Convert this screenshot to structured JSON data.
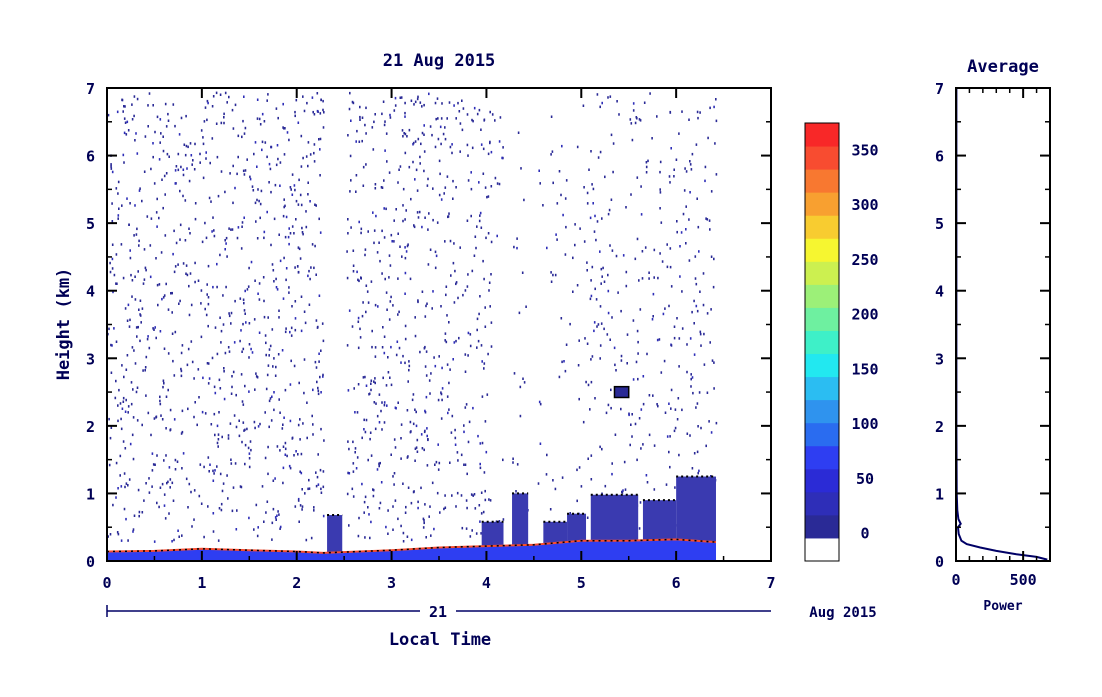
{
  "chart_data": [
    {
      "type": "heatmap",
      "title": "21 Aug 2015",
      "ylabel": "Height (km)",
      "xlabel": "Local Time",
      "xlim": [
        0,
        7
      ],
      "ylim": [
        0,
        7
      ],
      "x_ticks": [
        "0",
        "1",
        "2",
        "3",
        "4",
        "5",
        "6",
        "7"
      ],
      "y_ticks": [
        "0",
        "1",
        "2",
        "3",
        "4",
        "5",
        "6",
        "7"
      ],
      "date_axis": {
        "day": "21",
        "month_year": "Aug 2015"
      },
      "colorbar": {
        "ticks": [
          "0",
          "50",
          "100",
          "150",
          "200",
          "250",
          "300",
          "350"
        ],
        "min": -25,
        "max": 375,
        "colors": [
          "#ffffff",
          "#2a2a96",
          "#2e2eb8",
          "#2b2bd6",
          "#2e3ef2",
          "#2a6cf0",
          "#2f93ee",
          "#2bbdf2",
          "#22e8f0",
          "#3ef0c8",
          "#6ef0a0",
          "#9cf078",
          "#ccf050",
          "#f6f630",
          "#f8cc30",
          "#f8a030",
          "#f87830",
          "#f84c30",
          "#f82828"
        ]
      },
      "gaps_hours": [
        [
          2.28,
          2.52
        ],
        [
          4.18,
          4.27
        ],
        [
          4.44,
          4.53
        ],
        [
          6.42,
          7.0
        ]
      ],
      "surface_layer": [
        {
          "x": 0.0,
          "top": 0.14
        },
        {
          "x": 0.5,
          "top": 0.15
        },
        {
          "x": 1.0,
          "top": 0.18
        },
        {
          "x": 1.5,
          "top": 0.16
        },
        {
          "x": 2.0,
          "top": 0.14
        },
        {
          "x": 2.28,
          "top": 0.12
        },
        {
          "x": 3.0,
          "top": 0.16
        },
        {
          "x": 3.5,
          "top": 0.2
        },
        {
          "x": 4.0,
          "top": 0.22
        },
        {
          "x": 4.5,
          "top": 0.24
        },
        {
          "x": 5.0,
          "top": 0.3
        },
        {
          "x": 5.5,
          "top": 0.3
        },
        {
          "x": 6.0,
          "top": 0.32
        },
        {
          "x": 6.42,
          "top": 0.28
        }
      ],
      "elevated_layers": [
        {
          "x0": 2.32,
          "x1": 2.48,
          "top": 0.68,
          "bottom": 0.0
        },
        {
          "x0": 3.95,
          "x1": 4.18,
          "top": 0.58,
          "bottom": 0.0
        },
        {
          "x0": 4.27,
          "x1": 4.44,
          "top": 1.0,
          "bottom": 0.0
        },
        {
          "x0": 4.6,
          "x1": 4.85,
          "top": 0.58,
          "bottom": 0.0
        },
        {
          "x0": 4.85,
          "x1": 5.05,
          "top": 0.7,
          "bottom": 0.0
        },
        {
          "x0": 5.1,
          "x1": 5.6,
          "top": 0.98,
          "bottom": 0.0
        },
        {
          "x0": 5.65,
          "x1": 6.0,
          "top": 0.9,
          "bottom": 0.0
        },
        {
          "x0": 6.0,
          "x1": 6.42,
          "top": 1.25,
          "bottom": 0.0
        }
      ],
      "cloud_feature": {
        "x0": 5.35,
        "x1": 5.5,
        "y0": 2.42,
        "y1": 2.58
      }
    },
    {
      "type": "line",
      "title": "Average",
      "xlabel": "Power",
      "xlim": [
        0,
        700
      ],
      "ylim": [
        0,
        7
      ],
      "x_ticks": [
        "0",
        "500"
      ],
      "y_ticks": [
        "0",
        "1",
        "2",
        "3",
        "4",
        "5",
        "6",
        "7"
      ],
      "series": [
        {
          "x": [
            680,
            600,
            450,
            300,
            180,
            80,
            40,
            20,
            15,
            35,
            18,
            10,
            5,
            3,
            3,
            3
          ],
          "y": [
            0.02,
            0.06,
            0.1,
            0.15,
            0.2,
            0.25,
            0.3,
            0.4,
            0.5,
            0.55,
            0.62,
            0.75,
            1.0,
            2.0,
            5.0,
            7.0
          ]
        }
      ]
    }
  ]
}
